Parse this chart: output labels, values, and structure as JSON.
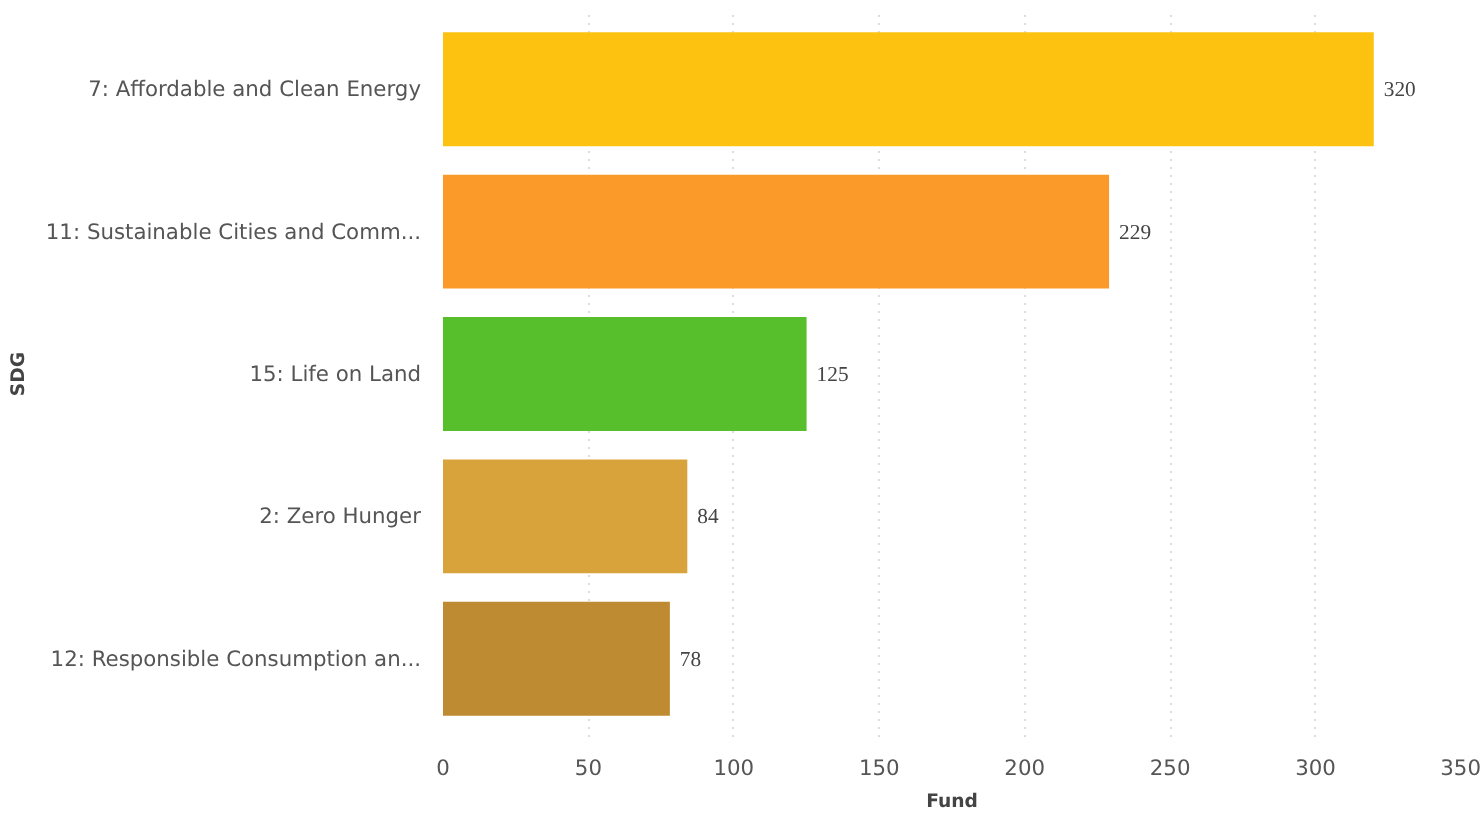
{
  "chart_data": {
    "type": "bar",
    "orientation": "horizontal",
    "xlabel": "Fund",
    "ylabel": "SDG",
    "categories": [
      "7: Affordable and Clean Energy",
      "11: Sustainable Cities and Comm...",
      "15: Life on Land",
      "2: Zero Hunger",
      "12: Responsible Consumption an..."
    ],
    "values": [
      320,
      229,
      125,
      84,
      78
    ],
    "colors": [
      "#fdc20f",
      "#fb9a29",
      "#58bf2c",
      "#d9a33b",
      "#be8a32"
    ],
    "xlim": [
      0,
      350
    ],
    "xticks": [
      0,
      50,
      100,
      150,
      200,
      250,
      300,
      350
    ],
    "grid": "x",
    "data_labels": true
  }
}
